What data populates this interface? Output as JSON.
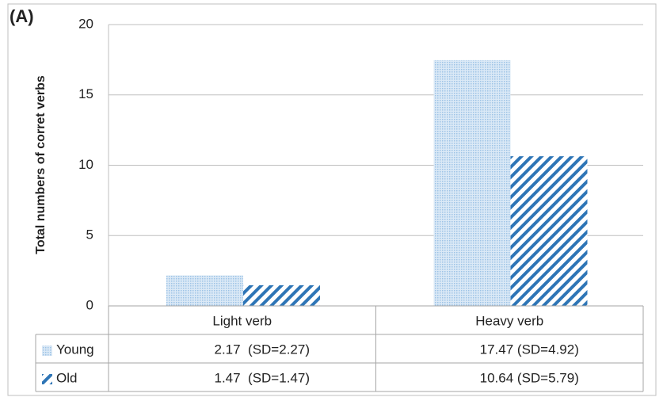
{
  "chart_data": {
    "type": "bar",
    "panel_label": "(A)",
    "y_label": "Total numbers of corret verbs",
    "categories": [
      "Light verb",
      "Heavy verb"
    ],
    "series": [
      {
        "name": "Young",
        "color": "#9dc3e6",
        "values": [
          2.17,
          17.47
        ],
        "value_labels": [
          "2.17  (SD=2.27)",
          "17.47 (SD=4.92)"
        ]
      },
      {
        "name": "Old",
        "color": "#2e75b6",
        "values": [
          1.47,
          10.64
        ],
        "value_labels": [
          "1.47  (SD=1.47)",
          "10.64 (SD=5.79)"
        ]
      }
    ],
    "ylim": [
      0,
      20
    ],
    "yticks": [
      0,
      5,
      10,
      15,
      20
    ],
    "grid": true
  }
}
